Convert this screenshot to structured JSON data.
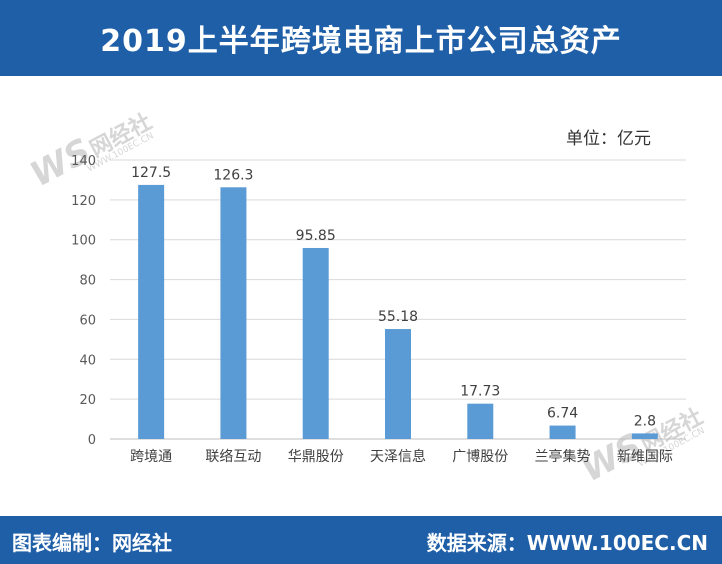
{
  "header": {
    "title": "2019上半年跨境电商上市公司总资产"
  },
  "unit_label": "单位：亿元",
  "watermark": {
    "brand": "WS",
    "name": "网经社",
    "url": "WWW.100EC.CN"
  },
  "footer": {
    "left": "图表编制：网经社",
    "right": "数据来源：WWW.100EC.CN"
  },
  "colors": {
    "bar": "#5b9bd5",
    "header": "#1f5fa8",
    "grid": "#d9d9d9",
    "axis_text": "#595959"
  },
  "chart_data": {
    "type": "bar",
    "title": "2019上半年跨境电商上市公司总资产",
    "ylabel": "单位：亿元",
    "xlabel": "",
    "ylim": [
      0,
      140
    ],
    "yticks": [
      0,
      20,
      40,
      60,
      80,
      100,
      120,
      140
    ],
    "grid": true,
    "categories": [
      "跨境通",
      "联络互动",
      "华鼎股份",
      "天泽信息",
      "广博股份",
      "兰亭集势",
      "新维国际"
    ],
    "values": [
      127.5,
      126.3,
      95.85,
      55.18,
      17.73,
      6.74,
      2.8
    ],
    "data_labels": [
      "127.5",
      "126.3",
      "95.85",
      "55.18",
      "17.73",
      "6.74",
      "2.8"
    ]
  }
}
